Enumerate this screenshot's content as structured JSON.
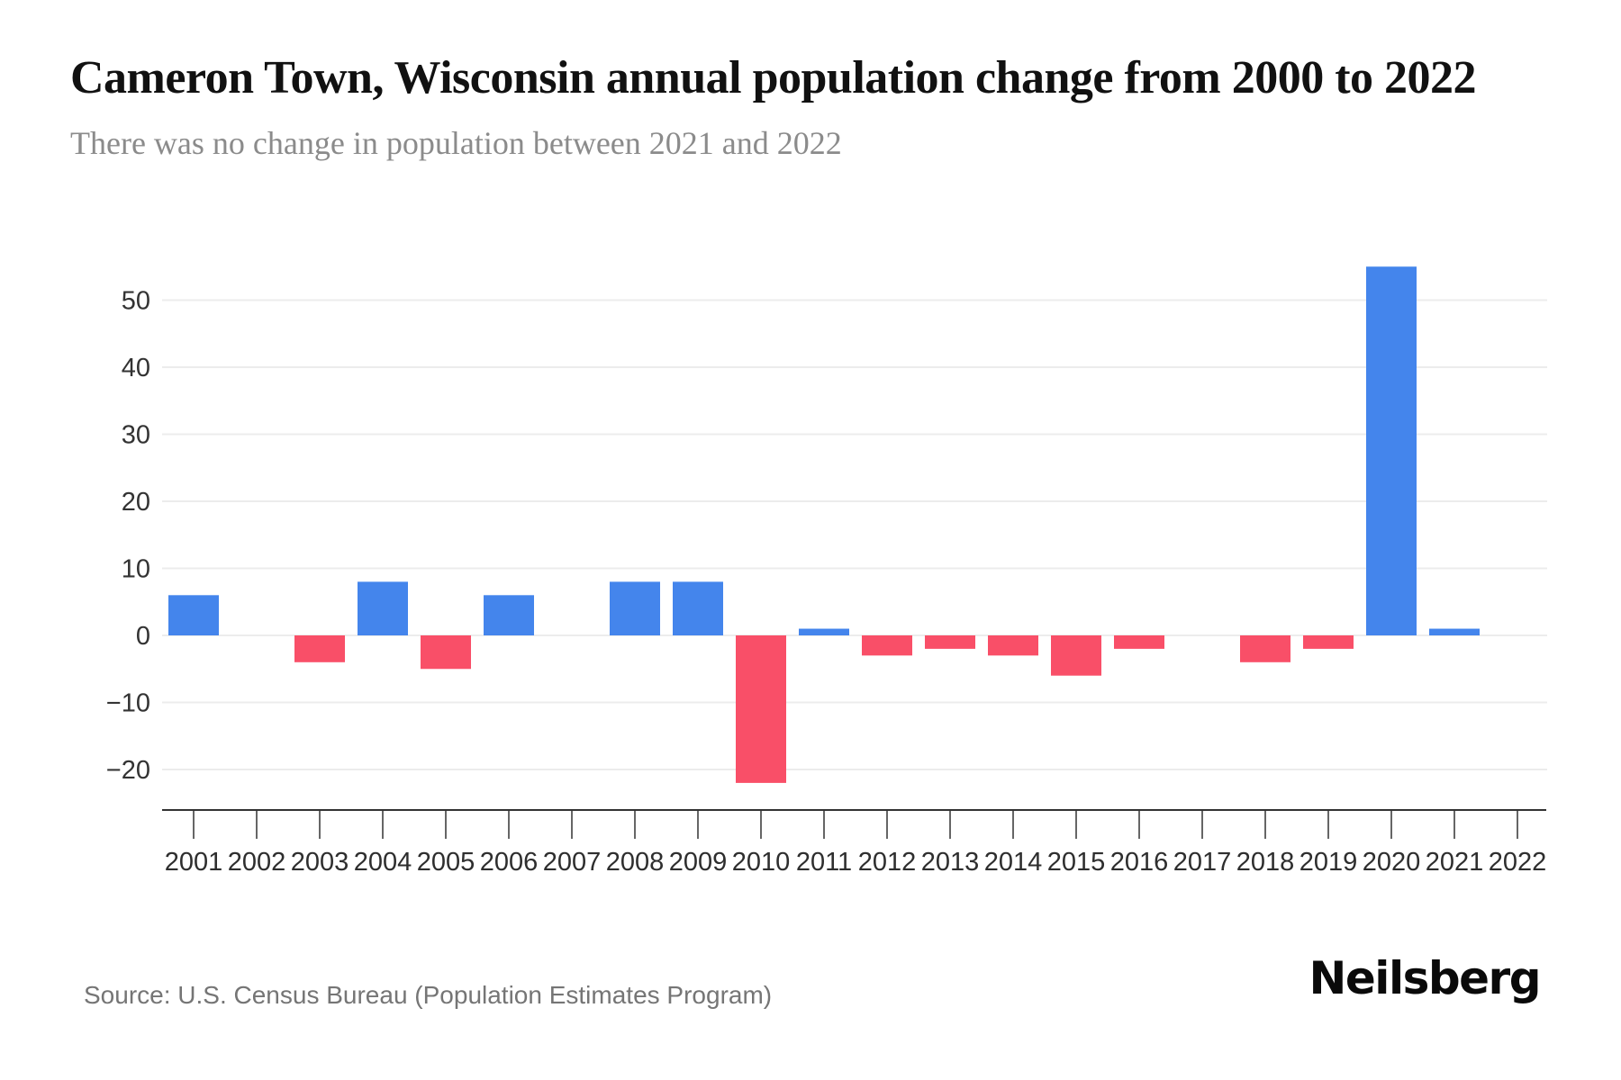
{
  "header": {
    "title": "Cameron Town, Wisconsin annual population change from 2000 to 2022",
    "subtitle": "There was no change in population between 2021 and 2022"
  },
  "chart_data": {
    "type": "bar",
    "title": "Cameron Town, Wisconsin annual population change from 2000 to 2022",
    "subtitle": "There was no change in population between 2021 and 2022",
    "categories": [
      "2001",
      "2002",
      "2003",
      "2004",
      "2005",
      "2006",
      "2007",
      "2008",
      "2009",
      "2010",
      "2011",
      "2012",
      "2013",
      "2014",
      "2015",
      "2016",
      "2017",
      "2018",
      "2019",
      "2020",
      "2021",
      "2022"
    ],
    "values": [
      6,
      0,
      -4,
      8,
      -5,
      6,
      0,
      8,
      8,
      -22,
      1,
      -3,
      -2,
      -3,
      -6,
      -2,
      0,
      -4,
      -2,
      55,
      1,
      0
    ],
    "xlabel": "",
    "ylabel": "",
    "ylim": [
      -26,
      59
    ],
    "yticks": [
      50,
      40,
      30,
      20,
      10,
      0,
      -10,
      -20
    ],
    "grid": true,
    "legend": "none",
    "colors": {
      "positive": "#4485EC",
      "negative": "#F94F68"
    }
  },
  "footer": {
    "source": "Source: U.S. Census Bureau (Population Estimates Program)",
    "brand": "Neilsberg"
  }
}
